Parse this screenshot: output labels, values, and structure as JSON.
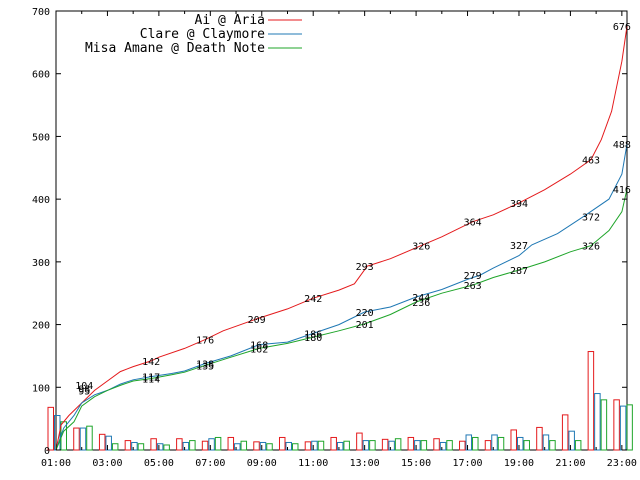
{
  "chart_data": {
    "type": "line",
    "title": "",
    "xlabel": "",
    "ylabel": "",
    "ylim": [
      0,
      700
    ],
    "x_ticks": [
      "01:00",
      "03:00",
      "05:00",
      "07:00",
      "09:00",
      "11:00",
      "13:00",
      "15:00",
      "17:00",
      "19:00",
      "21:00",
      "23:00"
    ],
    "y_ticks": [
      "0",
      "100",
      "200",
      "300",
      "400",
      "500",
      "600",
      "700"
    ],
    "grid": false,
    "legend_position": "top-left",
    "series": [
      {
        "name": "Ai @ Aria",
        "color": "#e41a1c",
        "points": [
          [
            1.0,
            0
          ],
          [
            1.2,
            40
          ],
          [
            1.5,
            55
          ],
          [
            2.0,
            75
          ],
          [
            2.5,
            95
          ],
          [
            3.0,
            110
          ],
          [
            3.5,
            125
          ],
          [
            4.0,
            133
          ],
          [
            4.7,
            142
          ],
          [
            5.0,
            148
          ],
          [
            6.0,
            162
          ],
          [
            6.8,
            176
          ],
          [
            7.5,
            190
          ],
          [
            8.8,
            209
          ],
          [
            10.0,
            225
          ],
          [
            11.0,
            242
          ],
          [
            12.0,
            255
          ],
          [
            12.6,
            265
          ],
          [
            13.1,
            293
          ],
          [
            14.0,
            305
          ],
          [
            15.2,
            326
          ],
          [
            16.0,
            340
          ],
          [
            17.2,
            364
          ],
          [
            18.0,
            375
          ],
          [
            19.0,
            394
          ],
          [
            20.0,
            415
          ],
          [
            21.0,
            440
          ],
          [
            21.8,
            463
          ],
          [
            22.2,
            495
          ],
          [
            22.6,
            540
          ],
          [
            23.0,
            620
          ],
          [
            23.2,
            676
          ]
        ],
        "labels": [
          [
            2.1,
            104,
            "104"
          ],
          [
            4.7,
            142,
            "142"
          ],
          [
            6.8,
            176,
            "176"
          ],
          [
            8.8,
            209,
            "209"
          ],
          [
            11.0,
            242,
            "242"
          ],
          [
            13.0,
            293,
            "293"
          ],
          [
            15.2,
            326,
            "326"
          ],
          [
            17.2,
            364,
            "364"
          ],
          [
            19.0,
            394,
            "394"
          ],
          [
            21.8,
            463,
            "463"
          ],
          [
            23.0,
            676,
            "676"
          ]
        ]
      },
      {
        "name": "Clare @ Claymore",
        "color": "#1f78b4",
        "points": [
          [
            1.0,
            0
          ],
          [
            1.3,
            35
          ],
          [
            1.7,
            55
          ],
          [
            2.0,
            75
          ],
          [
            2.5,
            88
          ],
          [
            3.0,
            95
          ],
          [
            3.5,
            105
          ],
          [
            4.0,
            112
          ],
          [
            4.7,
            117
          ],
          [
            5.5,
            122
          ],
          [
            6.0,
            126
          ],
          [
            6.8,
            138
          ],
          [
            7.8,
            150
          ],
          [
            8.9,
            168
          ],
          [
            10.0,
            172
          ],
          [
            11.0,
            186
          ],
          [
            12.0,
            200
          ],
          [
            13.0,
            220
          ],
          [
            14.0,
            228
          ],
          [
            15.0,
            244
          ],
          [
            16.0,
            256
          ],
          [
            17.0,
            272
          ],
          [
            17.5,
            279
          ],
          [
            18.0,
            290
          ],
          [
            19.0,
            310
          ],
          [
            19.5,
            327
          ],
          [
            20.5,
            345
          ],
          [
            21.5,
            372
          ],
          [
            22.5,
            400
          ],
          [
            23.0,
            440
          ],
          [
            23.2,
            488
          ]
        ],
        "labels": [
          [
            2.1,
            98,
            "98"
          ],
          [
            4.7,
            117,
            "117"
          ],
          [
            6.8,
            138,
            "138"
          ],
          [
            8.9,
            168,
            "168"
          ],
          [
            11.0,
            186,
            "186"
          ],
          [
            13.0,
            220,
            "220"
          ],
          [
            15.2,
            244,
            "244"
          ],
          [
            17.2,
            279,
            "279"
          ],
          [
            19.0,
            327,
            "327"
          ],
          [
            21.8,
            372,
            "372"
          ],
          [
            23.0,
            488,
            "488"
          ]
        ]
      },
      {
        "name": "Misa Amane @ Death Note",
        "color": "#1fa52a",
        "points": [
          [
            1.0,
            0
          ],
          [
            1.3,
            30
          ],
          [
            1.7,
            45
          ],
          [
            2.0,
            70
          ],
          [
            2.5,
            85
          ],
          [
            3.0,
            95
          ],
          [
            3.5,
            103
          ],
          [
            4.0,
            110
          ],
          [
            4.7,
            114
          ],
          [
            5.5,
            120
          ],
          [
            6.0,
            124
          ],
          [
            6.8,
            135
          ],
          [
            7.8,
            148
          ],
          [
            8.9,
            162
          ],
          [
            10.0,
            170
          ],
          [
            11.0,
            180
          ],
          [
            12.0,
            190
          ],
          [
            13.0,
            201
          ],
          [
            14.0,
            216
          ],
          [
            15.0,
            236
          ],
          [
            16.0,
            250
          ],
          [
            17.2,
            263
          ],
          [
            18.0,
            275
          ],
          [
            19.0,
            287
          ],
          [
            20.0,
            300
          ],
          [
            21.0,
            316
          ],
          [
            21.8,
            326
          ],
          [
            22.5,
            350
          ],
          [
            23.0,
            380
          ],
          [
            23.2,
            416
          ]
        ],
        "labels": [
          [
            2.1,
            95,
            "95"
          ],
          [
            4.7,
            114,
            "114"
          ],
          [
            6.8,
            135,
            "135"
          ],
          [
            8.9,
            162,
            "162"
          ],
          [
            11.0,
            180,
            "180"
          ],
          [
            13.0,
            201,
            "201"
          ],
          [
            15.2,
            236,
            "236"
          ],
          [
            17.2,
            263,
            "263"
          ],
          [
            19.0,
            287,
            "287"
          ],
          [
            21.8,
            326,
            "326"
          ],
          [
            23.0,
            416,
            "416"
          ]
        ]
      }
    ],
    "bars": {
      "hours": [
        1,
        2,
        3,
        4,
        5,
        6,
        7,
        8,
        9,
        10,
        11,
        12,
        13,
        14,
        15,
        16,
        17,
        18,
        19,
        20,
        21,
        22,
        23
      ],
      "series_values": [
        [
          68,
          35,
          25,
          15,
          18,
          18,
          14,
          20,
          13,
          20,
          13,
          20,
          27,
          17,
          20,
          18,
          14,
          15,
          32,
          36,
          56,
          157,
          80
        ],
        [
          55,
          35,
          22,
          12,
          10,
          12,
          18,
          10,
          12,
          12,
          14,
          12,
          15,
          14,
          15,
          12,
          24,
          24,
          20,
          24,
          30,
          90,
          70
        ],
        [
          45,
          38,
          10,
          10,
          8,
          15,
          20,
          14,
          10,
          10,
          14,
          14,
          15,
          18,
          15,
          15,
          20,
          20,
          15,
          15,
          15,
          80,
          72
        ]
      ]
    }
  }
}
